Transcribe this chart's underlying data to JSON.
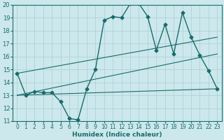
{
  "xlabel": "Humidex (Indice chaleur)",
  "xlim": [
    -0.5,
    23.5
  ],
  "ylim": [
    11,
    20
  ],
  "yticks": [
    11,
    12,
    13,
    14,
    15,
    16,
    17,
    18,
    19,
    20
  ],
  "xticks": [
    0,
    1,
    2,
    3,
    4,
    5,
    6,
    7,
    8,
    9,
    10,
    11,
    12,
    13,
    14,
    15,
    16,
    17,
    18,
    19,
    20,
    21,
    22,
    23
  ],
  "background_color": "#cce8ec",
  "grid_color": "#aacdd4",
  "line_color": "#1a6b6b",
  "line1": {
    "x": [
      0,
      1,
      2,
      3,
      4,
      5,
      6,
      7,
      8,
      9,
      10,
      11,
      12,
      13,
      14,
      15,
      16,
      17,
      18,
      19,
      20,
      21,
      22,
      23
    ],
    "y": [
      14.7,
      13.0,
      13.3,
      13.2,
      13.2,
      12.5,
      11.2,
      11.1,
      13.5,
      15.0,
      18.8,
      19.1,
      19.0,
      20.1,
      20.1,
      19.1,
      16.5,
      18.5,
      16.2,
      19.4,
      17.5,
      16.1,
      14.9,
      13.5
    ]
  },
  "line2": {
    "x": [
      0,
      23
    ],
    "y": [
      13.0,
      13.5
    ]
  },
  "line3": {
    "x": [
      0,
      23
    ],
    "y": [
      13.0,
      16.2
    ]
  },
  "line4": {
    "x": [
      0,
      23
    ],
    "y": [
      14.7,
      17.5
    ]
  },
  "figsize": [
    3.2,
    2.0
  ],
  "dpi": 100
}
